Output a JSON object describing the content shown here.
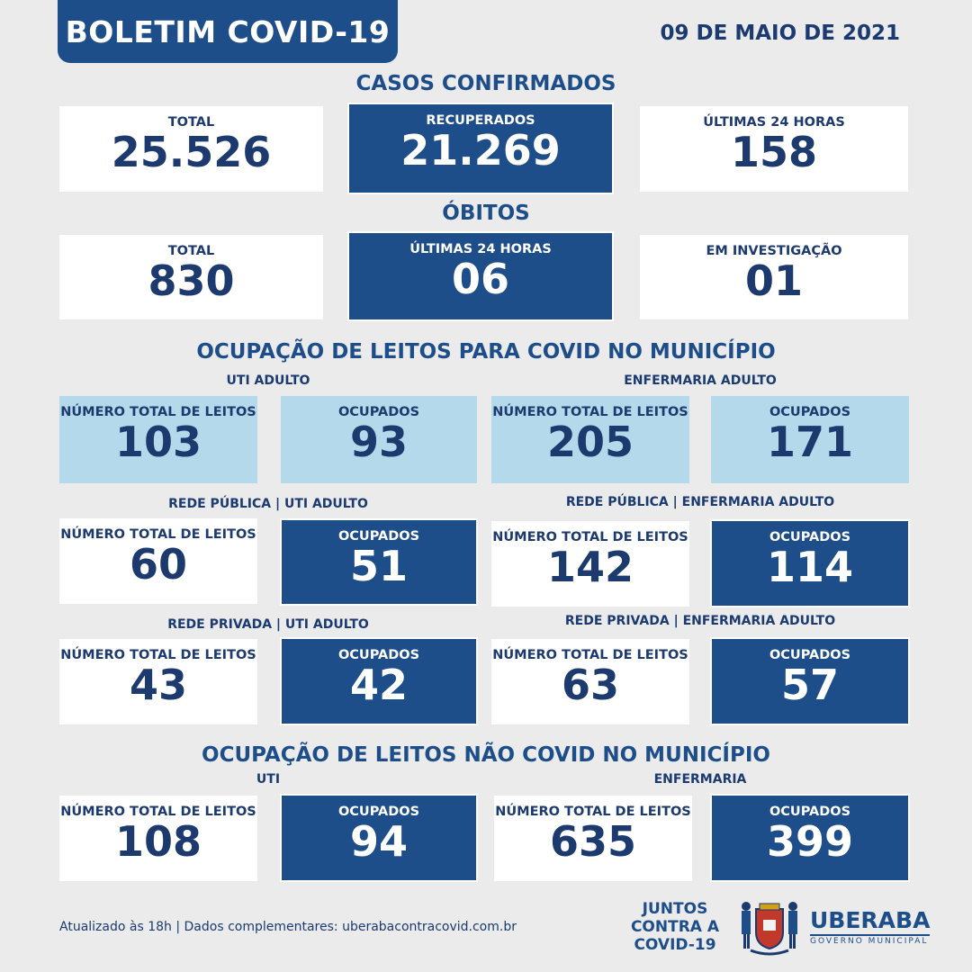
{
  "header": {
    "title": "BOLETIM COVID-19",
    "date": "09 DE MAIO DE 2021"
  },
  "cases": {
    "title": "CASOS CONFIRMADOS",
    "total_label": "TOTAL",
    "total": "25.526",
    "recovered_label": "RECUPERADOS",
    "recovered": "21.269",
    "last24_label": "ÚLTIMAS 24 HORAS",
    "last24": "158"
  },
  "deaths": {
    "title": "ÓBITOS",
    "total_label": "TOTAL",
    "total": "830",
    "last24_label": "ÚLTIMAS 24 HORAS",
    "last24": "06",
    "investigation_label": "EM INVESTIGAÇÃO",
    "investigation": "01"
  },
  "covid_beds": {
    "title": "OCUPAÇÃO DE LEITOS PARA COVID NO MUNICÍPIO",
    "total_label": "NÚMERO TOTAL DE LEITOS",
    "occupied_label": "OCUPADOS",
    "uti_adulto": {
      "heading": "UTI ADULTO",
      "total": "103",
      "occupied": "93"
    },
    "enfermaria_adulto": {
      "heading": "ENFERMARIA ADULTO",
      "total": "205",
      "occupied": "171"
    },
    "publica_uti": {
      "heading": "REDE PÚBLICA | UTI ADULTO",
      "total": "60",
      "occupied": "51"
    },
    "publica_enf": {
      "heading": "REDE PÚBLICA | ENFERMARIA ADULTO",
      "total": "142",
      "occupied": "114"
    },
    "privada_uti": {
      "heading": "REDE PRIVADA | UTI ADULTO",
      "total": "43",
      "occupied": "42"
    },
    "privada_enf": {
      "heading": "REDE PRIVADA | ENFERMARIA ADULTO",
      "total": "63",
      "occupied": "57"
    }
  },
  "non_covid_beds": {
    "title": "OCUPAÇÃO DE LEITOS NÃO COVID NO MUNICÍPIO",
    "total_label": "NÚMERO TOTAL DE LEITOS",
    "occupied_label": "OCUPADOS",
    "uti": {
      "heading": "UTI",
      "total": "108",
      "occupied": "94"
    },
    "enfermaria": {
      "heading": "ENFERMARIA",
      "total": "635",
      "occupied": "399"
    }
  },
  "footer": {
    "text": "Atualizado às 18h | Dados complementares: uberabacontracovid.com.br",
    "campaign_line1": "JUNTOS",
    "campaign_line2": "CONTRA A",
    "campaign_line3": "COVID-19",
    "city": "UBERABA",
    "city_sub": "GOVERNO MUNICIPAL"
  },
  "colors": {
    "dark_blue": "#1d4e89",
    "light_blue": "#b3d9ea",
    "background": "#ebebeb"
  }
}
